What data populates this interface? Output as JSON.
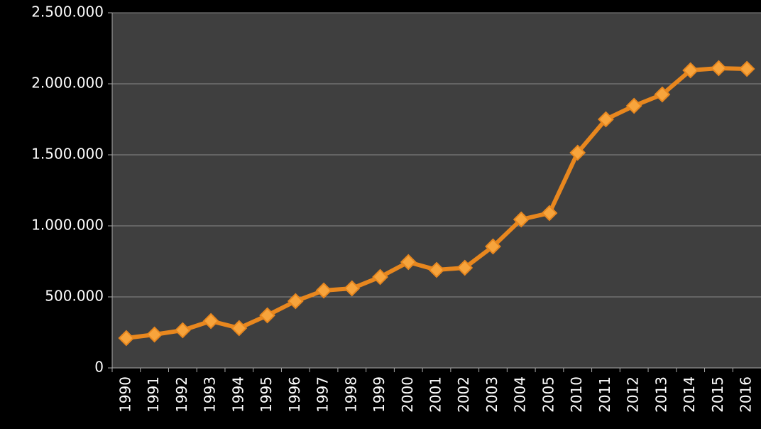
{
  "chart_data": {
    "type": "line",
    "categories": [
      "1990",
      "1991",
      "1992",
      "1993",
      "1994",
      "1995",
      "1996",
      "1997",
      "1998",
      "1999",
      "2000",
      "2001",
      "2002",
      "2003",
      "2004",
      "2005",
      "2010",
      "2011",
      "2012",
      "2013",
      "2014",
      "2015",
      "2016"
    ],
    "values": [
      210000,
      235000,
      265000,
      330000,
      280000,
      370000,
      470000,
      545000,
      560000,
      640000,
      745000,
      690000,
      705000,
      855000,
      1045000,
      1090000,
      1515000,
      1750000,
      1845000,
      1925000,
      2095000,
      2110000,
      2105000
    ],
    "color": "#e8871e",
    "marker_color": "#f7a43c",
    "ylim": [
      0,
      2500000
    ],
    "yticks": [
      0,
      {
        "value": 500000,
        "label": "500.000"
      },
      {
        "value": 1000000,
        "label": "1.000.000"
      },
      {
        "value": 1500000,
        "label": "1.500.000"
      },
      {
        "value": 2000000,
        "label": "2.000.000"
      },
      {
        "value": 2500000,
        "label": "2.500.000"
      }
    ],
    "grid": true
  }
}
